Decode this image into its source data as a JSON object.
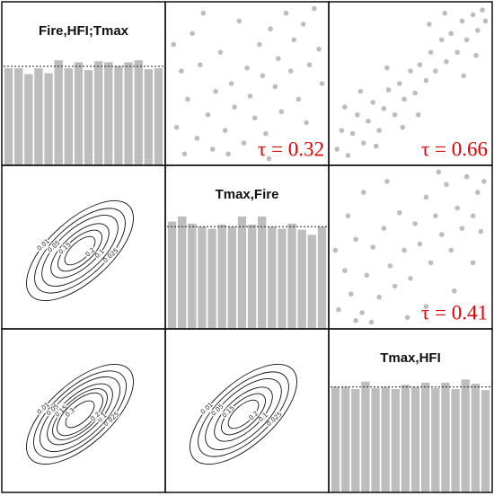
{
  "chart_data": [
    {
      "type": "bar",
      "title": "Fire,HFI;Tmax",
      "values": [
        0.98,
        0.98,
        0.92,
        0.98,
        0.93,
        1.06,
        0.98,
        1.04,
        0.96,
        1.05,
        1.04,
        1.0,
        1.04,
        1.06,
        0.97,
        0.98
      ],
      "ylim": [
        0,
        1.65
      ],
      "reference": 1,
      "color": "#bdbdbd"
    },
    {
      "type": "scatter",
      "annotation": "τ = 0.32",
      "annotation_color": "#e00000",
      "color": "#bdbdbd",
      "xlim": [
        0,
        1
      ],
      "ylim": [
        0,
        1
      ],
      "x": [
        0.05,
        0.1,
        0.12,
        0.18,
        0.2,
        0.25,
        0.28,
        0.3,
        0.33,
        0.36,
        0.4,
        0.42,
        0.45,
        0.48,
        0.5,
        0.52,
        0.55,
        0.58,
        0.6,
        0.62,
        0.65,
        0.68,
        0.7,
        0.72,
        0.75,
        0.78,
        0.8,
        0.83,
        0.86,
        0.9,
        0.93,
        0.96,
        0.08,
        0.15,
        0.38,
        0.88,
        0.22,
        0.64,
        0.98,
        0.03
      ],
      "y": [
        0.22,
        0.05,
        0.4,
        0.15,
        0.62,
        0.3,
        0.08,
        0.45,
        0.7,
        0.2,
        0.5,
        0.35,
        0.9,
        0.12,
        0.6,
        0.42,
        0.28,
        0.75,
        0.55,
        0.18,
        0.85,
        0.48,
        0.66,
        0.32,
        0.95,
        0.58,
        0.78,
        0.4,
        0.88,
        0.62,
        0.98,
        0.72,
        0.58,
        0.82,
        0.05,
        0.25,
        0.95,
        0.02,
        0.5,
        0.75
      ]
    },
    {
      "type": "scatter",
      "annotation": "τ = 0.66",
      "annotation_color": "#e00000",
      "color": "#bdbdbd",
      "xlim": [
        0,
        1
      ],
      "ylim": [
        0,
        1
      ],
      "x": [
        0.03,
        0.06,
        0.1,
        0.13,
        0.16,
        0.2,
        0.23,
        0.26,
        0.3,
        0.33,
        0.36,
        0.4,
        0.43,
        0.46,
        0.5,
        0.53,
        0.56,
        0.6,
        0.63,
        0.66,
        0.7,
        0.73,
        0.76,
        0.8,
        0.83,
        0.86,
        0.9,
        0.93,
        0.96,
        0.98,
        0.18,
        0.45,
        0.62,
        0.84,
        0.35,
        0.55,
        0.08,
        0.92,
        0.28,
        0.72
      ],
      "y": [
        0.08,
        0.2,
        0.04,
        0.18,
        0.3,
        0.12,
        0.26,
        0.38,
        0.2,
        0.34,
        0.46,
        0.3,
        0.5,
        0.4,
        0.58,
        0.44,
        0.62,
        0.52,
        0.7,
        0.58,
        0.78,
        0.64,
        0.82,
        0.7,
        0.9,
        0.78,
        0.94,
        0.84,
        0.97,
        0.9,
        0.45,
        0.22,
        0.88,
        0.55,
        0.6,
        0.3,
        0.35,
        0.68,
        0.1,
        0.95
      ]
    },
    {
      "type": "contour",
      "levels": [
        0.01,
        0.025,
        0.05,
        0.1,
        0.15,
        0.2
      ],
      "color": "#111111"
    },
    {
      "type": "bar",
      "title": "Tmax,Fire",
      "values": [
        1.05,
        1.1,
        1.03,
        1.0,
        0.98,
        1.02,
        1.0,
        1.1,
        1.02,
        1.1,
        1.0,
        0.98,
        1.03,
        0.97,
        0.92,
        1.0
      ],
      "ylim": [
        0,
        1.6
      ],
      "reference": 1,
      "color": "#bdbdbd"
    },
    {
      "type": "scatter",
      "annotation": "τ = 0.41",
      "annotation_color": "#e00000",
      "color": "#bdbdbd",
      "xlim": [
        0,
        1
      ],
      "ylim": [
        0,
        1
      ],
      "x": [
        0.04,
        0.08,
        0.12,
        0.15,
        0.19,
        0.22,
        0.26,
        0.3,
        0.33,
        0.37,
        0.4,
        0.43,
        0.46,
        0.5,
        0.53,
        0.56,
        0.6,
        0.63,
        0.66,
        0.7,
        0.73,
        0.76,
        0.8,
        0.83,
        0.86,
        0.9,
        0.93,
        0.97,
        0.1,
        0.2,
        0.48,
        0.78,
        0.35,
        0.9,
        0.6,
        0.02,
        0.68,
        0.25,
        0.95,
        0.15
      ],
      "y": [
        0.1,
        0.35,
        0.2,
        0.55,
        0.08,
        0.32,
        0.5,
        0.18,
        0.62,
        0.38,
        0.25,
        0.72,
        0.48,
        0.3,
        0.65,
        0.52,
        0.82,
        0.4,
        0.7,
        0.58,
        0.9,
        0.48,
        0.75,
        0.62,
        0.95,
        0.7,
        0.85,
        0.92,
        0.7,
        0.85,
        0.05,
        0.22,
        0.92,
        0.4,
        0.12,
        0.48,
        0.98,
        0.02,
        0.6,
        0.03
      ]
    },
    {
      "type": "contour",
      "levels": [
        0.01,
        0.025,
        0.05,
        0.1,
        0.15,
        0.2,
        0.3
      ],
      "color": "#111111"
    },
    {
      "type": "contour",
      "levels": [
        0.01,
        0.025,
        0.05,
        0.1,
        0.15,
        0.2
      ],
      "color": "#111111"
    },
    {
      "type": "bar",
      "title": "Tmax,HFI",
      "values": [
        1.0,
        1.0,
        0.98,
        1.05,
        0.99,
        1.0,
        0.98,
        1.02,
        1.0,
        1.04,
        0.99,
        1.04,
        0.98,
        1.07,
        1.03,
        0.97
      ],
      "ylim": [
        0,
        1.55
      ],
      "reference": 1,
      "color": "#bdbdbd"
    }
  ]
}
